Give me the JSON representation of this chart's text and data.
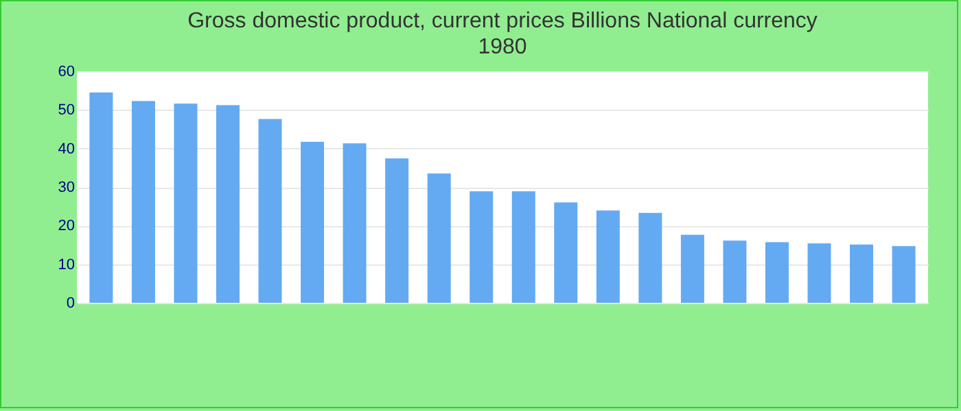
{
  "chart_data": {
    "type": "bar",
    "title": "Gross domestic product, current prices Billions National currency",
    "subtitle": "1980",
    "categories": [
      null,
      null,
      null,
      null,
      null,
      null,
      null,
      null,
      null,
      null,
      null,
      null,
      null,
      null,
      null,
      null,
      null,
      null,
      null,
      null
    ],
    "values": [
      54.5,
      52.3,
      51.6,
      51.2,
      47.6,
      41.7,
      41.3,
      37.4,
      33.5,
      28.9,
      28.9,
      26.0,
      23.9,
      23.3,
      17.6,
      16.1,
      15.7,
      15.4,
      15.1,
      14.7
    ],
    "color": "#63aaf2",
    "ylim": [
      0,
      60
    ],
    "yticks": [
      0,
      10,
      20,
      30,
      40,
      50,
      60
    ],
    "grid": "y"
  }
}
